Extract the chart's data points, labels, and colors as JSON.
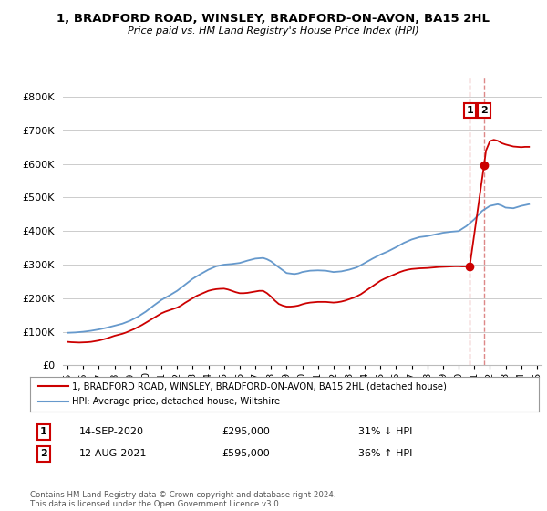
{
  "title": "1, BRADFORD ROAD, WINSLEY, BRADFORD-ON-AVON, BA15 2HL",
  "subtitle": "Price paid vs. HM Land Registry's House Price Index (HPI)",
  "legend_label_red": "1, BRADFORD ROAD, WINSLEY, BRADFORD-ON-AVON, BA15 2HL (detached house)",
  "legend_label_blue": "HPI: Average price, detached house, Wiltshire",
  "footnote": "Contains HM Land Registry data © Crown copyright and database right 2024.\nThis data is licensed under the Open Government Licence v3.0.",
  "annotation1_label": "1",
  "annotation1_date": "14-SEP-2020",
  "annotation1_price": "£295,000",
  "annotation1_hpi": "31% ↓ HPI",
  "annotation2_label": "2",
  "annotation2_date": "12-AUG-2021",
  "annotation2_price": "£595,000",
  "annotation2_hpi": "36% ↑ HPI",
  "ylim": [
    0,
    860000
  ],
  "yticks": [
    0,
    100000,
    200000,
    300000,
    400000,
    500000,
    600000,
    700000,
    800000
  ],
  "color_red": "#cc0000",
  "color_blue": "#6699cc",
  "color_vline": "#dd8888",
  "bg_color": "#ffffff",
  "grid_color": "#cccccc",
  "hpi_x": [
    1995,
    1995.25,
    1995.5,
    1995.75,
    1996,
    1996.25,
    1996.5,
    1996.75,
    1997,
    1997.25,
    1997.5,
    1997.75,
    1998,
    1998.25,
    1998.5,
    1998.75,
    1999,
    1999.25,
    1999.5,
    1999.75,
    2000,
    2000.25,
    2000.5,
    2000.75,
    2001,
    2001.25,
    2001.5,
    2001.75,
    2002,
    2002.25,
    2002.5,
    2002.75,
    2003,
    2003.25,
    2003.5,
    2003.75,
    2004,
    2004.25,
    2004.5,
    2004.75,
    2005,
    2005.25,
    2005.5,
    2005.75,
    2006,
    2006.25,
    2006.5,
    2006.75,
    2007,
    2007.25,
    2007.5,
    2007.75,
    2008,
    2008.25,
    2008.5,
    2008.75,
    2009,
    2009.25,
    2009.5,
    2009.75,
    2010,
    2010.25,
    2010.5,
    2010.75,
    2011,
    2011.25,
    2011.5,
    2011.75,
    2012,
    2012.25,
    2012.5,
    2012.75,
    2013,
    2013.25,
    2013.5,
    2013.75,
    2014,
    2014.25,
    2014.5,
    2014.75,
    2015,
    2015.25,
    2015.5,
    2015.75,
    2016,
    2016.25,
    2016.5,
    2016.75,
    2017,
    2017.25,
    2017.5,
    2017.75,
    2018,
    2018.25,
    2018.5,
    2018.75,
    2019,
    2019.25,
    2019.5,
    2019.75,
    2020,
    2020.25,
    2020.5,
    2020.75,
    2021,
    2021.25,
    2021.5,
    2021.75,
    2022,
    2022.25,
    2022.5,
    2022.75,
    2023,
    2023.25,
    2023.5,
    2023.75,
    2024,
    2024.25,
    2024.5
  ],
  "hpi_y": [
    97000,
    97500,
    98000,
    99000,
    100000,
    101500,
    103000,
    105000,
    107000,
    109500,
    112000,
    115000,
    118000,
    121000,
    124000,
    128500,
    133000,
    139000,
    145000,
    152500,
    160000,
    169000,
    178000,
    186500,
    195000,
    201500,
    208000,
    215000,
    222000,
    231000,
    240000,
    249000,
    258000,
    265000,
    272000,
    278500,
    285000,
    290000,
    295000,
    297500,
    300000,
    301000,
    302000,
    303500,
    305000,
    308500,
    312000,
    315000,
    318000,
    319000,
    320000,
    316000,
    310000,
    301000,
    292000,
    283500,
    275000,
    273500,
    272000,
    274000,
    278000,
    280000,
    282000,
    282500,
    283000,
    282500,
    282000,
    280000,
    278000,
    279000,
    280000,
    282500,
    285000,
    288500,
    292000,
    298500,
    305000,
    311500,
    318000,
    324000,
    330000,
    335000,
    340000,
    346000,
    352000,
    358500,
    365000,
    370000,
    375000,
    378500,
    382000,
    383500,
    385000,
    387500,
    390000,
    392500,
    395000,
    396500,
    398000,
    399000,
    400000,
    407500,
    415000,
    425000,
    435000,
    447500,
    460000,
    467500,
    475000,
    477500,
    480000,
    476000,
    470000,
    469000,
    468000,
    471500,
    475000,
    477500,
    480000
  ],
  "red_x": [
    1995,
    1995.25,
    1995.5,
    1995.75,
    1996,
    1996.25,
    1996.5,
    1996.75,
    1997,
    1997.25,
    1997.5,
    1997.75,
    1998,
    1998.25,
    1998.5,
    1998.75,
    1999,
    1999.25,
    1999.5,
    1999.75,
    2000,
    2000.25,
    2000.5,
    2000.75,
    2001,
    2001.25,
    2001.5,
    2001.75,
    2002,
    2002.25,
    2002.5,
    2002.75,
    2003,
    2003.25,
    2003.5,
    2003.75,
    2004,
    2004.25,
    2004.5,
    2004.75,
    2005,
    2005.25,
    2005.5,
    2005.75,
    2006,
    2006.25,
    2006.5,
    2006.75,
    2007,
    2007.25,
    2007.5,
    2007.75,
    2008,
    2008.25,
    2008.5,
    2008.75,
    2009,
    2009.25,
    2009.5,
    2009.75,
    2010,
    2010.25,
    2010.5,
    2010.75,
    2011,
    2011.25,
    2011.5,
    2011.75,
    2012,
    2012.25,
    2012.5,
    2012.75,
    2013,
    2013.25,
    2013.5,
    2013.75,
    2014,
    2014.25,
    2014.5,
    2014.75,
    2015,
    2015.25,
    2015.5,
    2015.75,
    2016,
    2016.25,
    2016.5,
    2016.75,
    2017,
    2017.25,
    2017.5,
    2017.75,
    2018,
    2018.25,
    2018.5,
    2018.75,
    2019,
    2019.25,
    2019.5,
    2019.75,
    2020,
    2020.25,
    2020.5,
    2020.71
  ],
  "red_y": [
    70000,
    69000,
    68500,
    68000,
    68500,
    69000,
    70000,
    72000,
    74000,
    77000,
    80000,
    84000,
    88000,
    91000,
    94000,
    98000,
    103000,
    108000,
    114000,
    120000,
    127000,
    134000,
    141000,
    148000,
    155000,
    160000,
    164000,
    168000,
    172000,
    178000,
    186000,
    193000,
    200000,
    207000,
    212000,
    217000,
    222000,
    225000,
    227000,
    228000,
    228500,
    226000,
    222000,
    218000,
    215000,
    215000,
    216000,
    218000,
    220000,
    222000,
    222000,
    215000,
    205000,
    193000,
    183000,
    178000,
    175000,
    175000,
    176000,
    178000,
    182000,
    185000,
    187000,
    188000,
    189000,
    189000,
    189000,
    188000,
    187000,
    188000,
    190000,
    193000,
    197000,
    201000,
    206000,
    212000,
    220000,
    228000,
    236000,
    244000,
    252000,
    258000,
    263000,
    268000,
    273000,
    278000,
    282000,
    285000,
    287000,
    288000,
    289000,
    289500,
    290000,
    291000,
    292000,
    293000,
    293500,
    294000,
    294500,
    295000,
    295000,
    294500,
    294800,
    295000
  ],
  "red_after_x": [
    2021.62,
    2021.75,
    2022,
    2022.25,
    2022.5,
    2022.75,
    2023,
    2023.25,
    2023.5,
    2023.75,
    2024,
    2024.25,
    2024.5
  ],
  "red_after_y": [
    595000,
    640000,
    668000,
    672000,
    669000,
    662000,
    658000,
    655000,
    652000,
    651000,
    650000,
    651000,
    651000
  ],
  "sale1_x": 2020.71,
  "sale1_y": 295000,
  "sale2_x": 2021.62,
  "sale2_y": 595000,
  "xmin": 1994.7,
  "xmax": 2025.3,
  "xticks": [
    1995,
    1996,
    1997,
    1998,
    1999,
    2000,
    2001,
    2002,
    2003,
    2004,
    2005,
    2006,
    2007,
    2008,
    2009,
    2010,
    2011,
    2012,
    2013,
    2014,
    2015,
    2016,
    2017,
    2018,
    2019,
    2020,
    2021,
    2022,
    2023,
    2024,
    2025
  ]
}
